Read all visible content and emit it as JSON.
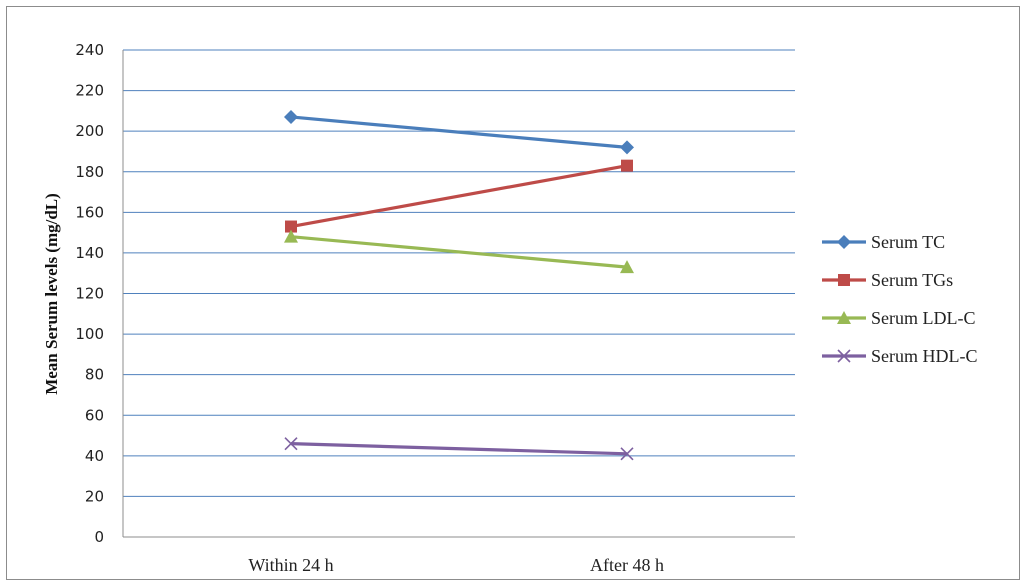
{
  "chart_data": {
    "type": "line",
    "title": "",
    "xlabel": "",
    "ylabel": "Mean Serum levels (mg/dL)",
    "categories": [
      "Within 24 h",
      "After 48 h"
    ],
    "ylim": [
      0,
      240
    ],
    "yticks": [
      0,
      20,
      40,
      60,
      80,
      100,
      120,
      140,
      160,
      180,
      200,
      220,
      240
    ],
    "grid": true,
    "legend_position": "right",
    "series": [
      {
        "name": "Serum TC",
        "values": [
          207,
          192
        ],
        "color": "#4a7ebb",
        "marker": "diamond"
      },
      {
        "name": "Serum TGs",
        "values": [
          153,
          183
        ],
        "color": "#be4b48",
        "marker": "square"
      },
      {
        "name": "Serum LDL-C",
        "values": [
          148,
          133
        ],
        "color": "#98b954",
        "marker": "triangle"
      },
      {
        "name": "Serum HDL-C",
        "values": [
          46,
          41
        ],
        "color": "#7d60a0",
        "marker": "x"
      }
    ]
  }
}
